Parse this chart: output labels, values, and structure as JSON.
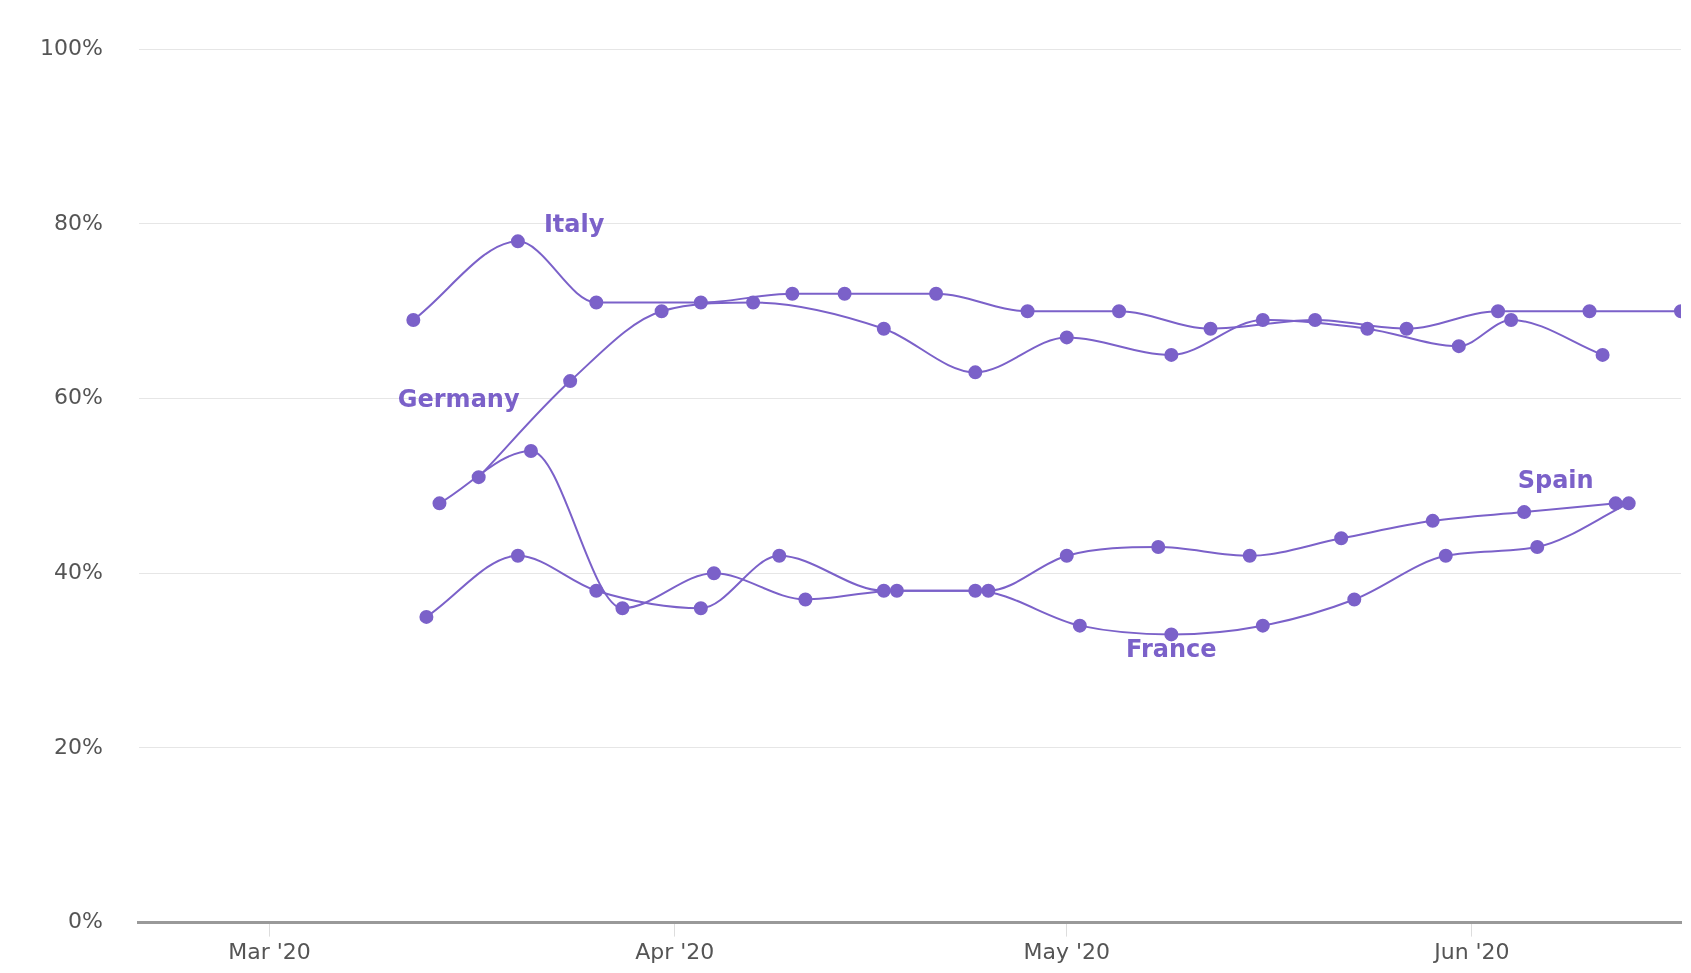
{
  "chart_data": {
    "type": "line",
    "marker": "circle",
    "grid": "y",
    "legend": false,
    "xlim": [
      "2020-02-20",
      "2020-06-17"
    ],
    "xticks": [
      {
        "value": "2020-03-01",
        "label": "Mar '20"
      },
      {
        "value": "2020-04-01",
        "label": "Apr '20"
      },
      {
        "value": "2020-05-01",
        "label": "May '20"
      },
      {
        "value": "2020-06-01",
        "label": "Jun '20"
      }
    ],
    "ylim": [
      0,
      100
    ],
    "yticks": [
      {
        "value": 0,
        "label": "0%"
      },
      {
        "value": 20,
        "label": "20%"
      },
      {
        "value": 40,
        "label": "40%"
      },
      {
        "value": 60,
        "label": "60%"
      },
      {
        "value": 80,
        "label": "80%"
      },
      {
        "value": 100,
        "label": "100%"
      }
    ],
    "series": [
      {
        "name": "Italy",
        "color": "#7b61c9",
        "x": [
          "2020-03-12",
          "2020-03-20",
          "2020-03-26",
          "2020-04-03",
          "2020-04-10",
          "2020-04-14",
          "2020-04-21",
          "2020-04-28",
          "2020-05-05",
          "2020-05-12",
          "2020-05-20",
          "2020-05-27",
          "2020-06-03",
          "2020-06-10",
          "2020-06-17"
        ],
        "values": [
          69,
          78,
          71,
          71,
          72,
          72,
          72,
          70,
          70,
          68,
          69,
          68,
          70,
          70,
          70
        ]
      },
      {
        "name": "Germany",
        "color": "#7b61c9",
        "x": [
          "2020-03-17",
          "2020-03-24",
          "2020-03-31",
          "2020-04-07",
          "2020-04-17",
          "2020-04-24",
          "2020-05-01",
          "2020-05-09",
          "2020-05-16",
          "2020-05-24",
          "2020-05-31",
          "2020-06-04",
          "2020-06-11"
        ],
        "values": [
          51,
          62,
          70,
          71,
          68,
          63,
          67,
          65,
          69,
          68,
          66,
          69,
          65
        ]
      },
      {
        "name": "France",
        "color": "#7b61c9",
        "x": [
          "2020-03-13",
          "2020-03-20",
          "2020-03-26",
          "2020-04-03",
          "2020-04-09",
          "2020-04-17",
          "2020-04-24",
          "2020-05-02",
          "2020-05-09",
          "2020-05-16",
          "2020-05-23",
          "2020-05-30",
          "2020-06-06",
          "2020-06-13"
        ],
        "values": [
          35,
          42,
          38,
          36,
          42,
          38,
          38,
          34,
          33,
          34,
          37,
          42,
          43,
          48
        ]
      },
      {
        "name": "Spain",
        "color": "#7b61c9",
        "x": [
          "2020-03-14",
          "2020-03-21",
          "2020-03-28",
          "2020-04-04",
          "2020-04-11",
          "2020-04-18",
          "2020-04-25",
          "2020-05-01",
          "2020-05-08",
          "2020-05-15",
          "2020-05-22",
          "2020-05-29",
          "2020-06-05",
          "2020-06-12"
        ],
        "values": [
          48,
          54,
          36,
          40,
          37,
          38,
          38,
          42,
          43,
          42,
          44,
          46,
          47,
          48
        ]
      }
    ]
  }
}
